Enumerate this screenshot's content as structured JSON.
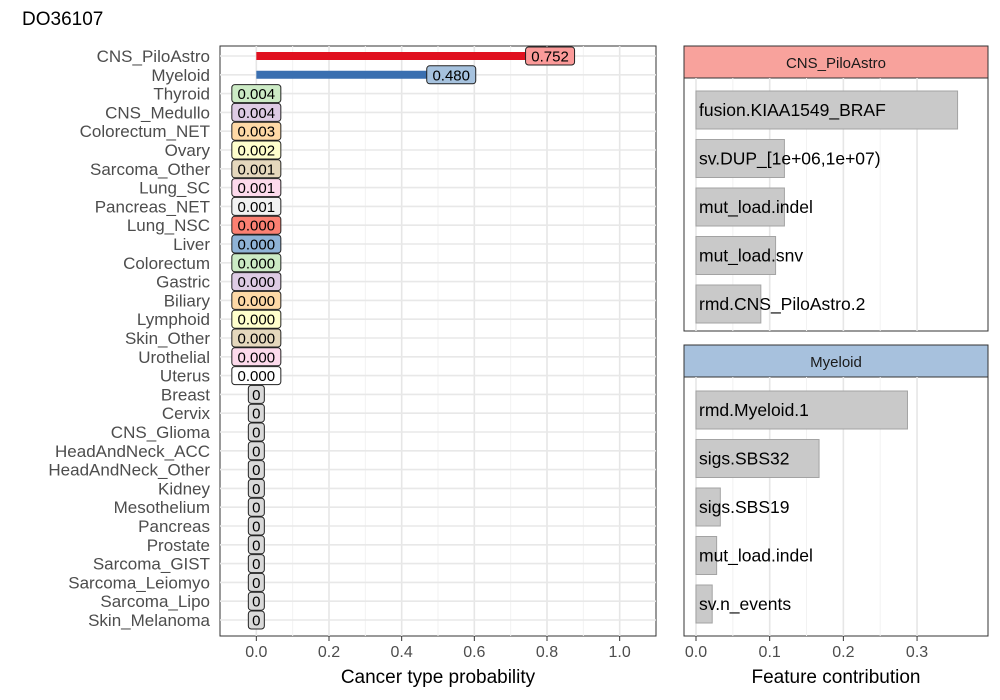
{
  "figure_title": "DO36107",
  "chart_data": [
    {
      "type": "bar",
      "orientation": "horizontal",
      "title": "DO36107",
      "xlabel": "Cancer type probability",
      "ylabel": "",
      "xlim": [
        -0.1,
        1.1
      ],
      "xticks": [
        0.0,
        0.2,
        0.4,
        0.6,
        0.8,
        1.0
      ],
      "xtick_labels": [
        "0.0",
        "0.2",
        "0.4",
        "0.6",
        "0.8",
        "1.0"
      ],
      "grid": true,
      "categories": [
        "CNS_PiloAstro",
        "Myeloid",
        "Thyroid",
        "CNS_Medullo",
        "Colorectum_NET",
        "Ovary",
        "Sarcoma_Other",
        "Lung_SC",
        "Pancreas_NET",
        "Lung_NSC",
        "Liver",
        "Colorectum",
        "Gastric",
        "Biliary",
        "Lymphoid",
        "Skin_Other",
        "Urothelial",
        "Uterus",
        "Breast",
        "Cervix",
        "CNS_Glioma",
        "HeadAndNeck_ACC",
        "HeadAndNeck_Other",
        "Kidney",
        "Mesothelium",
        "Pancreas",
        "Prostate",
        "Sarcoma_GIST",
        "Sarcoma_Leiomyo",
        "Sarcoma_Lipo",
        "Skin_Melanoma"
      ],
      "values": [
        0.752,
        0.48,
        0.004,
        0.004,
        0.003,
        0.002,
        0.001,
        0.001,
        0.001,
        0.0,
        0.0,
        0.0,
        0.0,
        0.0,
        0.0,
        0.0,
        0.0,
        0.0,
        0,
        0,
        0,
        0,
        0,
        0,
        0,
        0,
        0,
        0,
        0,
        0,
        0
      ],
      "labels": [
        "0.752",
        "0.480",
        "0.004",
        "0.004",
        "0.003",
        "0.002",
        "0.001",
        "0.001",
        "0.001",
        "0.000",
        "0.000",
        "0.000",
        "0.000",
        "0.000",
        "0.000",
        "0.000",
        "0.000",
        "0.000",
        "0",
        "0",
        "0",
        "0",
        "0",
        "0",
        "0",
        "0",
        "0",
        "0",
        "0",
        "0",
        "0"
      ],
      "bar_colors": {
        "CNS_PiloAstro": "#e0101f",
        "Myeloid": "#3a6fb0"
      },
      "label_fills": [
        "#fb9a99",
        "#a6c2de",
        "#ccebc5",
        "#decbe4",
        "#fed9a6",
        "#ffffcc",
        "#e5d8bd",
        "#fddaec",
        "#f2f2f2",
        "#fb8072",
        "#8fb3d6",
        "#ccebc5",
        "#decbe4",
        "#fed9a6",
        "#ffffcc",
        "#e5d8bd",
        "#fddaec",
        "#ffffff",
        "#d9d9d9",
        "#d9d9d9",
        "#d9d9d9",
        "#d9d9d9",
        "#d9d9d9",
        "#d9d9d9",
        "#d9d9d9",
        "#d9d9d9",
        "#d9d9d9",
        "#d9d9d9",
        "#d9d9d9",
        "#d9d9d9",
        "#d9d9d9"
      ]
    },
    {
      "type": "bar",
      "orientation": "horizontal",
      "title": "CNS_PiloAstro",
      "strip_color": "#f8a29c",
      "xlabel": "Feature contribution",
      "xlim": [
        0,
        0.38
      ],
      "xticks": [
        0.0,
        0.1,
        0.2,
        0.3
      ],
      "categories": [
        "fusion.KIAA1549_BRAF",
        "sv.DUP_[1e+06,1e+07)",
        "mut_load.indel",
        "mut_load.snv",
        "rmd.CNS_PiloAstro.2"
      ],
      "values": [
        0.355,
        0.12,
        0.12,
        0.108,
        0.088
      ]
    },
    {
      "type": "bar",
      "orientation": "horizontal",
      "title": "Myeloid",
      "strip_color": "#a7c1dd",
      "xlabel": "Feature contribution",
      "xlim": [
        0,
        0.38
      ],
      "xticks": [
        0.0,
        0.1,
        0.2,
        0.3
      ],
      "xtick_labels": [
        "0.0",
        "0.1",
        "0.2",
        "0.3"
      ],
      "categories": [
        "rmd.Myeloid.1",
        "sigs.SBS32",
        "sigs.SBS19",
        "mut_load.indel",
        "sv.n_events"
      ],
      "values": [
        0.287,
        0.167,
        0.033,
        0.028,
        0.022
      ]
    }
  ]
}
